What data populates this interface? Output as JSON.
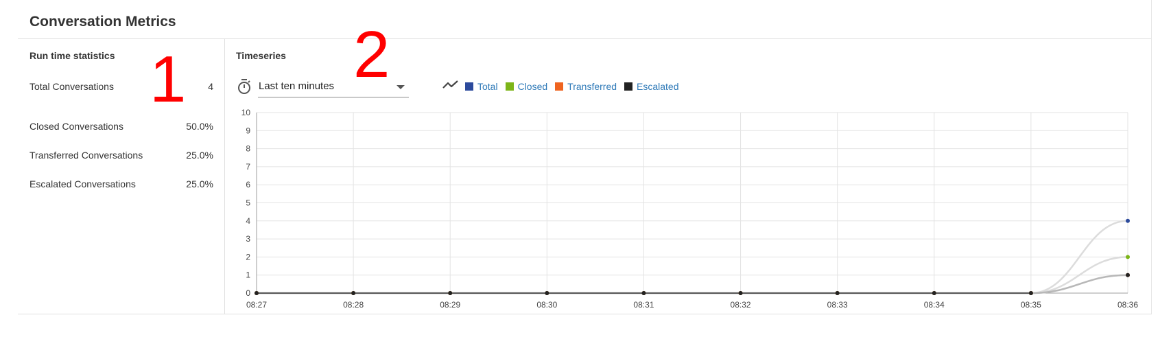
{
  "header": {
    "title": "Conversation Metrics"
  },
  "stats": {
    "title": "Run time statistics",
    "rows": [
      {
        "label": "Total Conversations",
        "value": "4"
      },
      {
        "label": "Closed Conversations",
        "value": "50.0%"
      },
      {
        "label": "Transferred Conversations",
        "value": "25.0%"
      },
      {
        "label": "Escalated Conversations",
        "value": "25.0%"
      }
    ]
  },
  "annotations": {
    "one": "1",
    "two": "2"
  },
  "timeseries": {
    "title": "Timeseries",
    "range_select": {
      "value": "Last ten minutes"
    },
    "icons": {
      "timer": "timer-icon",
      "chart_type": "line-chart-icon",
      "dropdown": "caret-down-icon"
    },
    "legend": [
      {
        "label": "Total",
        "color": "#2c4a9c"
      },
      {
        "label": "Closed",
        "color": "#7cb518"
      },
      {
        "label": "Transferred",
        "color": "#ef6420"
      },
      {
        "label": "Escalated",
        "color": "#222222"
      }
    ]
  },
  "chart_data": {
    "type": "line",
    "x": [
      "08:27",
      "08:28",
      "08:29",
      "08:30",
      "08:31",
      "08:32",
      "08:33",
      "08:34",
      "08:35",
      "08:36"
    ],
    "ylim": [
      0,
      10
    ],
    "yticks": [
      "0",
      "1",
      "2",
      "3",
      "4",
      "5",
      "6",
      "7",
      "8",
      "9",
      "10"
    ],
    "grid": true,
    "legend_position": "top",
    "series": [
      {
        "name": "Total",
        "color": "#2c4a9c",
        "values": [
          0,
          0,
          0,
          0,
          0,
          0,
          0,
          0,
          0,
          4
        ]
      },
      {
        "name": "Closed",
        "color": "#7cb518",
        "values": [
          0,
          0,
          0,
          0,
          0,
          0,
          0,
          0,
          0,
          2
        ]
      },
      {
        "name": "Transferred",
        "color": "#ef6420",
        "values": [
          0,
          0,
          0,
          0,
          0,
          0,
          0,
          0,
          0,
          1
        ]
      },
      {
        "name": "Escalated",
        "color": "#222222",
        "values": [
          0,
          0,
          0,
          0,
          0,
          0,
          0,
          0,
          0,
          1
        ]
      }
    ]
  }
}
